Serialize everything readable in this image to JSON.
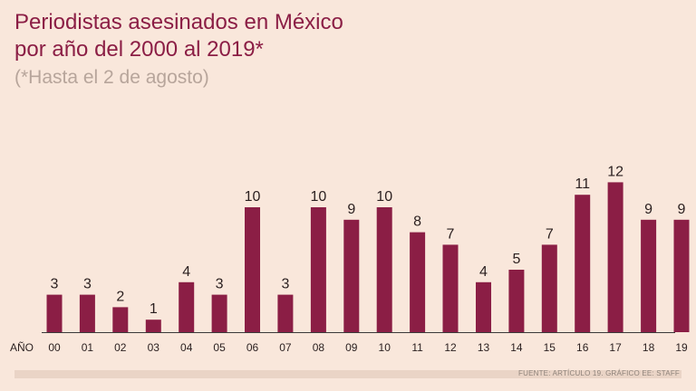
{
  "title_line1": "Periodistas asesinados en México",
  "title_line2": "por año del 2000 al 2019*",
  "subtitle": "(*Hasta el 2 de agosto)",
  "source": "FUENTE: ARTÍCULO 19. GRÁFICO EE: STAFF",
  "colors": {
    "bar": "#8b1e45",
    "background": "#f9e7db",
    "text": "#2a1f1f",
    "baseline": "#3a3a3a"
  },
  "chart_data": {
    "type": "bar",
    "title": "Periodistas asesinados en México por año del 2000 al 2019*",
    "subtitle": "(*Hasta el 2 de agosto)",
    "xlabel": "AÑO",
    "ylabel": "",
    "categories": [
      "00",
      "01",
      "02",
      "03",
      "04",
      "05",
      "06",
      "07",
      "08",
      "09",
      "10",
      "11",
      "12",
      "13",
      "14",
      "15",
      "16",
      "17",
      "18",
      "19"
    ],
    "values": [
      3,
      3,
      2,
      1,
      4,
      3,
      10,
      3,
      10,
      9,
      10,
      8,
      7,
      4,
      5,
      7,
      11,
      12,
      9,
      9
    ],
    "ylim": [
      0,
      12
    ],
    "grid": false,
    "legend": "none"
  }
}
